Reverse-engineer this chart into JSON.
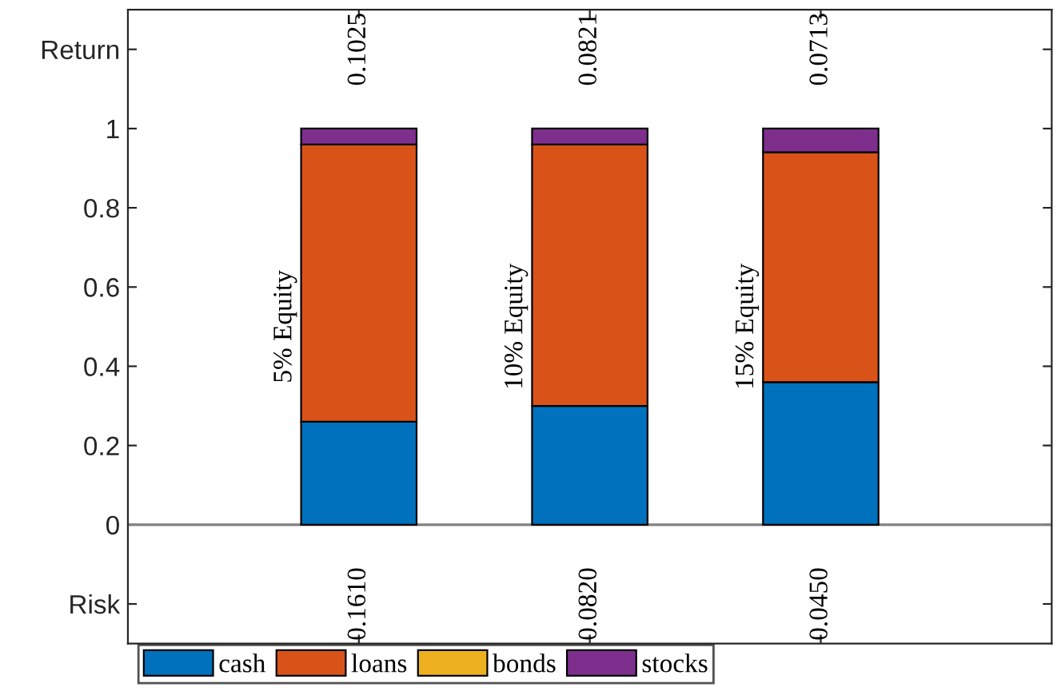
{
  "chart_data": {
    "type": "bar",
    "stacked": true,
    "categories": [
      "5% Equity",
      "10% Equity",
      "15% Equity"
    ],
    "series": [
      {
        "name": "cash",
        "color": "#0072bd",
        "values": [
          0.26,
          0.3,
          0.36
        ]
      },
      {
        "name": "loans",
        "color": "#d95319",
        "values": [
          0.7,
          0.66,
          0.58
        ]
      },
      {
        "name": "bonds",
        "color": "#edb120",
        "values": [
          0,
          0,
          0
        ]
      },
      {
        "name": "stocks",
        "color": "#7e2f8e",
        "values": [
          0.04,
          0.04,
          0.06
        ]
      }
    ],
    "ylim": [
      -0.3,
      1.3
    ],
    "yticks": [
      {
        "value": -0.2,
        "label": "Risk"
      },
      0,
      0.2,
      0.4,
      0.6,
      0.8,
      1,
      {
        "value": 1.2,
        "label": "Return"
      }
    ],
    "ref_lines": [
      {
        "axis": "y",
        "value": 0,
        "label": null,
        "color": "#808080"
      }
    ],
    "annotations": [
      "0.1025",
      "0.0821",
      "0.0713",
      "0.1610",
      "0.0820",
      "0.0450"
    ],
    "grid": false,
    "legend": "bottom"
  }
}
